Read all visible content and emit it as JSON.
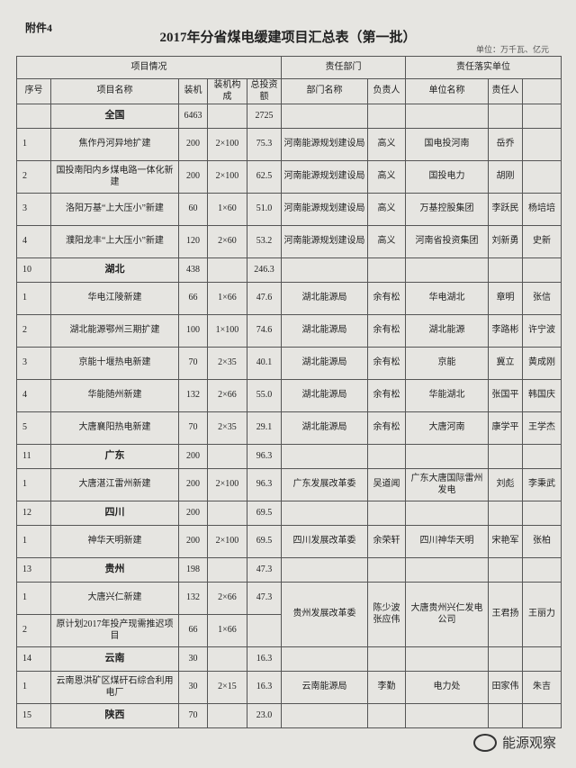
{
  "header": {
    "attachment": "附件4",
    "title": "2017年分省煤电缓建项目汇总表（第一批）",
    "unit": "单位：万千瓦、亿元"
  },
  "table": {
    "group_headers": [
      "项目情况",
      "责任部门",
      "责任落实单位"
    ],
    "headers": [
      "序号",
      "项目名称",
      "装机",
      "装机构成",
      "总投资额",
      "部门名称",
      "负责人",
      "单位名称",
      "责任人"
    ],
    "rows": [
      [
        null,
        "全国",
        "6463",
        null,
        "2725",
        null,
        null,
        null,
        null,
        null
      ],
      [
        "1",
        "焦作丹河异地扩建",
        "200",
        "2×100",
        "75.3",
        "河南能源规划建设局",
        "高义",
        "国电投河南",
        "岳乔",
        null
      ],
      [
        "2",
        "国投南阳内乡煤电路一体化新建",
        "200",
        "2×100",
        "62.5",
        "河南能源规划建设局",
        "高义",
        "国投电力",
        "胡刚",
        null
      ],
      [
        "3",
        "洛阳万基“上大压小”新建",
        "60",
        "1×60",
        "51.0",
        "河南能源规划建设局",
        "高义",
        "万基控股集团",
        "李跃民",
        "杨培培"
      ],
      [
        "4",
        "濮阳龙丰“上大压小”新建",
        "120",
        "2×60",
        "53.2",
        "河南能源规划建设局",
        "高义",
        "河南省投资集团",
        "刘新勇",
        "史新"
      ],
      [
        "10",
        "湖北",
        "438",
        null,
        "246.3",
        null,
        null,
        null,
        null,
        null
      ],
      [
        "1",
        "华电江陵新建",
        "66",
        "1×66",
        "47.6",
        "湖北能源局",
        "余有松",
        "华电湖北",
        "章明",
        "张信"
      ],
      [
        "2",
        "湖北能源鄂州三期扩建",
        "100",
        "1×100",
        "74.6",
        "湖北能源局",
        "余有松",
        "湖北能源",
        "李路彬",
        "许宁波"
      ],
      [
        "3",
        "京能十堰热电新建",
        "70",
        "2×35",
        "40.1",
        "湖北能源局",
        "余有松",
        "京能",
        "冀立",
        "黄成刚"
      ],
      [
        "4",
        "华能随州新建",
        "132",
        "2×66",
        "55.0",
        "湖北能源局",
        "余有松",
        "华能湖北",
        "张国平",
        "韩国庆"
      ],
      [
        "5",
        "大唐襄阳热电新建",
        "70",
        "2×35",
        "29.1",
        "湖北能源局",
        "余有松",
        "大唐河南",
        "康学平",
        "王学杰"
      ],
      [
        "11",
        "广东",
        "200",
        null,
        "96.3",
        null,
        null,
        null,
        null,
        null
      ],
      [
        "1",
        "大唐湛江雷州新建",
        "200",
        "2×100",
        "96.3",
        "广东发展改革委",
        "吴道闻",
        "广东大唐国际雷州发电",
        "刘彪",
        "李秉武"
      ],
      [
        "12",
        "四川",
        "200",
        null,
        "69.5",
        null,
        null,
        null,
        null,
        null
      ],
      [
        "1",
        "神华天明新建",
        "200",
        "2×100",
        "69.5",
        "四川发展改革委",
        "余荣轩",
        "四川神华天明",
        "宋艳军",
        "张柏"
      ],
      [
        "13",
        "贵州",
        "198",
        null,
        "47.3",
        null,
        null,
        null,
        null,
        null
      ],
      [
        "1",
        "大唐兴仁新建",
        "132",
        "2×66",
        "47.3",
        "贵州发展改革委",
        "陈少波 张应伟",
        "大唐贵州兴仁发电公司",
        "王君扬",
        "王丽力"
      ],
      [
        "2",
        "原计划2017年投产现需推迟项目",
        "66",
        "1×66",
        null
      ],
      [
        "14",
        "云南",
        "30",
        null,
        "16.3",
        null,
        null,
        null,
        null,
        null
      ],
      [
        "1",
        "云南恩洪矿区煤矸石综合利用电厂",
        "30",
        "2×15",
        "16.3",
        "云南能源局",
        "李勤",
        "电力处",
        "田家伟",
        "朱吉"
      ],
      [
        "15",
        "陕西",
        "70",
        null,
        "23.0",
        null,
        null,
        null,
        null,
        null
      ]
    ]
  },
  "watermark": "能源观察"
}
